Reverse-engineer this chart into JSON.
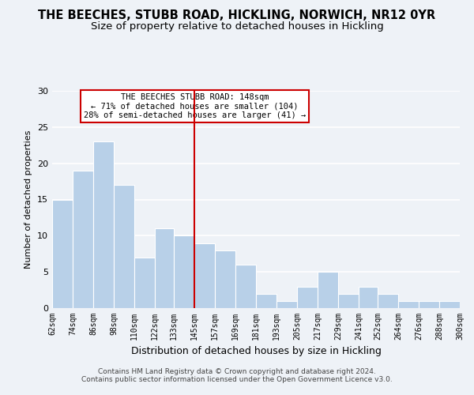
{
  "title": "THE BEECHES, STUBB ROAD, HICKLING, NORWICH, NR12 0YR",
  "subtitle": "Size of property relative to detached houses in Hickling",
  "xlabel": "Distribution of detached houses by size in Hickling",
  "ylabel": "Number of detached properties",
  "bins": [
    62,
    74,
    86,
    98,
    110,
    122,
    133,
    145,
    157,
    169,
    181,
    193,
    205,
    217,
    229,
    241,
    252,
    264,
    276,
    288,
    300
  ],
  "counts": [
    15,
    19,
    23,
    17,
    7,
    11,
    10,
    9,
    8,
    6,
    2,
    1,
    3,
    5,
    2,
    3,
    2,
    1,
    1,
    1
  ],
  "bar_color": "#b8d0e8",
  "bar_edge_color": "#ffffff",
  "vline_x": 145,
  "vline_color": "#cc0000",
  "annotation_title": "THE BEECHES STUBB ROAD: 148sqm",
  "annotation_line1": "← 71% of detached houses are smaller (104)",
  "annotation_line2": "28% of semi-detached houses are larger (41) →",
  "annotation_box_edge": "#cc0000",
  "annotation_box_face": "#ffffff",
  "tick_labels": [
    "62sqm",
    "74sqm",
    "86sqm",
    "98sqm",
    "110sqm",
    "122sqm",
    "133sqm",
    "145sqm",
    "157sqm",
    "169sqm",
    "181sqm",
    "193sqm",
    "205sqm",
    "217sqm",
    "229sqm",
    "241sqm",
    "252sqm",
    "264sqm",
    "276sqm",
    "288sqm",
    "300sqm"
  ],
  "ylim": [
    0,
    30
  ],
  "yticks": [
    0,
    5,
    10,
    15,
    20,
    25,
    30
  ],
  "footer_line1": "Contains HM Land Registry data © Crown copyright and database right 2024.",
  "footer_line2": "Contains public sector information licensed under the Open Government Licence v3.0.",
  "background_color": "#eef2f7",
  "plot_background": "#eef2f7",
  "grid_color": "#ffffff",
  "title_fontsize": 10.5,
  "subtitle_fontsize": 9.5
}
